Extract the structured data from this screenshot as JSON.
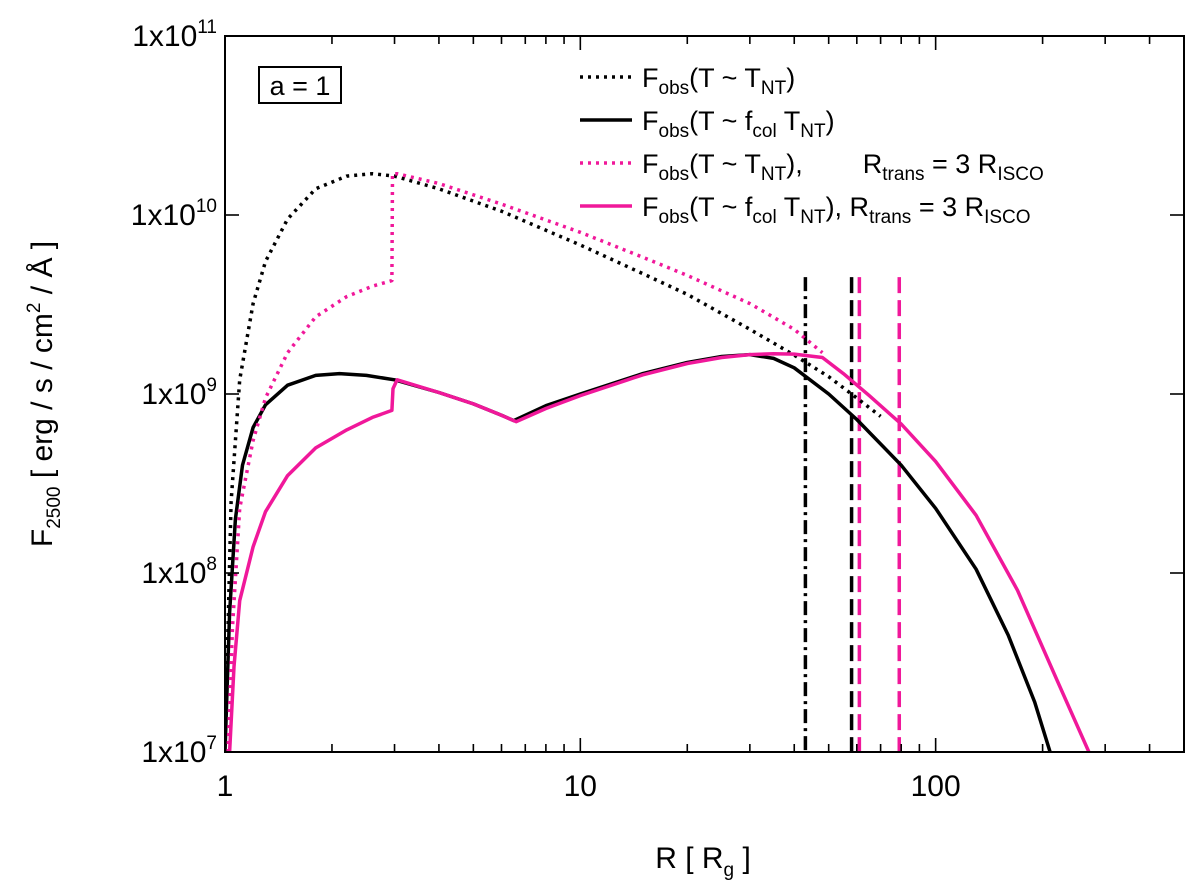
{
  "chart_data": {
    "type": "line",
    "xscale": "log",
    "yscale": "log",
    "xlim": [
      1,
      500
    ],
    "ylim": [
      10000000,
      100000000000
    ],
    "xlabel": {
      "main": "R [ R",
      "sub": "g",
      "tail": " ]"
    },
    "ylabel": {
      "main": "F",
      "sub": "2500",
      "tail": " [ erg / s / cm",
      "sup": "2",
      "end": " / Å ]"
    },
    "x_ticks": [
      {
        "value": 1,
        "label": "1"
      },
      {
        "value": 10,
        "label": "10"
      },
      {
        "value": 100,
        "label": "100"
      }
    ],
    "y_ticks": [
      {
        "value": 10000000,
        "base": "1x10",
        "exp": "7"
      },
      {
        "value": 100000000,
        "base": "1x10",
        "exp": "8"
      },
      {
        "value": 1000000000,
        "base": "1x10",
        "exp": "9"
      },
      {
        "value": 10000000000,
        "base": "1x10",
        "exp": "10"
      },
      {
        "value": 100000000000,
        "base": "1x10",
        "exp": "11"
      }
    ],
    "annotation": "a = 1",
    "colors": {
      "black": "#000000",
      "pink": "#f0189a"
    },
    "series": [
      {
        "name": "Fobs(T ~ TNT)",
        "color": "#000000",
        "style": "dotted",
        "legend": [
          [
            "F",
            ""
          ],
          [
            "obs",
            "sub"
          ],
          [
            "(T ~ T",
            ""
          ],
          [
            "NT",
            "sub"
          ],
          [
            ")",
            ""
          ]
        ],
        "x": [
          1.0,
          1.04,
          1.1,
          1.2,
          1.3,
          1.5,
          1.8,
          2.2,
          2.6,
          3.0,
          4,
          6,
          10,
          15,
          20,
          30,
          40,
          50,
          60,
          70
        ],
        "y": [
          10000000.0,
          250000000.0,
          1200000000.0,
          3200000000.0,
          5500000000.0,
          9500000000.0,
          14000000000.0,
          16500000000.0,
          17000000000.0,
          16500000000.0,
          14000000000.0,
          10500000000.0,
          6800000000.0,
          4700000000.0,
          3600000000.0,
          2300000000.0,
          1650000000.0,
          1250000000.0,
          950000000.0,
          750000000.0
        ]
      },
      {
        "name": "Fobs(T ~ fcol TNT)",
        "color": "#000000",
        "style": "solid",
        "legend": [
          [
            "F",
            ""
          ],
          [
            "obs",
            "sub"
          ],
          [
            "(T ~ f",
            ""
          ],
          [
            "col",
            "sub"
          ],
          [
            " T",
            ""
          ],
          [
            "NT",
            "sub"
          ],
          [
            ")",
            ""
          ]
        ],
        "x": [
          1.0,
          1.03,
          1.07,
          1.12,
          1.2,
          1.3,
          1.5,
          1.8,
          2.1,
          2.5,
          3.0,
          4.0,
          5.0,
          6.0,
          6.5,
          8,
          10,
          15,
          20,
          25,
          30,
          35,
          40,
          50,
          60,
          80,
          100,
          130,
          160,
          190,
          210
        ],
        "y": [
          10000000.0,
          60000000.0,
          200000000.0,
          400000000.0,
          650000000.0,
          870000000.0,
          1120000000.0,
          1270000000.0,
          1300000000.0,
          1270000000.0,
          1200000000.0,
          1020000000.0,
          880000000.0,
          760000000.0,
          710000000.0,
          860000000.0,
          1000000000.0,
          1300000000.0,
          1500000000.0,
          1620000000.0,
          1660000000.0,
          1580000000.0,
          1400000000.0,
          1000000000.0,
          720000000.0,
          400000000.0,
          230000000.0,
          105000000.0,
          45000000.0,
          19000000.0,
          10000000.0
        ]
      },
      {
        "name": "Fobs(T ~ TNT), Rtrans = 3 RISCO",
        "color": "#f0189a",
        "style": "dotted",
        "legend": [
          [
            "F",
            ""
          ],
          [
            "obs",
            "sub"
          ],
          [
            "(T ~ T",
            ""
          ],
          [
            "NT",
            "sub"
          ],
          [
            "),",
            ""
          ],
          [
            "        R",
            ""
          ],
          [
            "trans",
            "sub"
          ],
          [
            " = 3 R",
            ""
          ],
          [
            "ISCO",
            "sub"
          ]
        ],
        "x": [
          1.02,
          1.05,
          1.1,
          1.2,
          1.3,
          1.5,
          1.8,
          2.2,
          2.6,
          2.95,
          2.96,
          3.05,
          4,
          6,
          10,
          15,
          20,
          30,
          40,
          48
        ],
        "y": [
          10000000.0,
          50000000.0,
          230000000.0,
          550000000.0,
          950000000.0,
          1700000000.0,
          2700000000.0,
          3500000000.0,
          4000000000.0,
          4300000000.0,
          17000000000.0,
          17000000000.0,
          15000000000.0,
          11500000000.0,
          8000000000.0,
          5800000000.0,
          4600000000.0,
          3200000000.0,
          2300000000.0,
          1700000000.0
        ]
      },
      {
        "name": "Fobs(T ~ fcol TNT), Rtrans = 3 RISCO",
        "color": "#f0189a",
        "style": "solid",
        "legend": [
          [
            "F",
            ""
          ],
          [
            "obs",
            "sub"
          ],
          [
            "(T ~ f",
            ""
          ],
          [
            "col",
            "sub"
          ],
          [
            " T",
            ""
          ],
          [
            "NT",
            "sub"
          ],
          [
            "), R",
            ""
          ],
          [
            "trans",
            "sub"
          ],
          [
            " = 3 R",
            ""
          ],
          [
            "ISCO",
            "sub"
          ]
        ],
        "x": [
          1.03,
          1.06,
          1.1,
          1.2,
          1.3,
          1.5,
          1.8,
          2.2,
          2.6,
          2.95,
          2.97,
          3.05,
          4.0,
          5.0,
          6.0,
          6.6,
          8,
          10,
          15,
          20,
          25,
          30,
          35,
          40,
          48,
          55,
          65,
          80,
          100,
          130,
          170,
          220,
          270
        ],
        "y": [
          10000000.0,
          30000000.0,
          70000000.0,
          140000000.0,
          220000000.0,
          350000000.0,
          500000000.0,
          630000000.0,
          740000000.0,
          810000000.0,
          1070000000.0,
          1200000000.0,
          1020000000.0,
          880000000.0,
          760000000.0,
          700000000.0,
          830000000.0,
          980000000.0,
          1280000000.0,
          1480000000.0,
          1600000000.0,
          1660000000.0,
          1680000000.0,
          1670000000.0,
          1600000000.0,
          1300000000.0,
          980000000.0,
          680000000.0,
          420000000.0,
          210000000.0,
          80000000.0,
          25000000.0,
          10000000.0
        ]
      }
    ],
    "vertical_lines": [
      {
        "x": 43,
        "color": "#000000",
        "style": "dashdot"
      },
      {
        "x": 58,
        "color": "#000000",
        "style": "dashed"
      },
      {
        "x": 61,
        "color": "#f0189a",
        "style": "dashed"
      },
      {
        "x": 79,
        "color": "#f0189a",
        "style": "dashed"
      }
    ]
  }
}
